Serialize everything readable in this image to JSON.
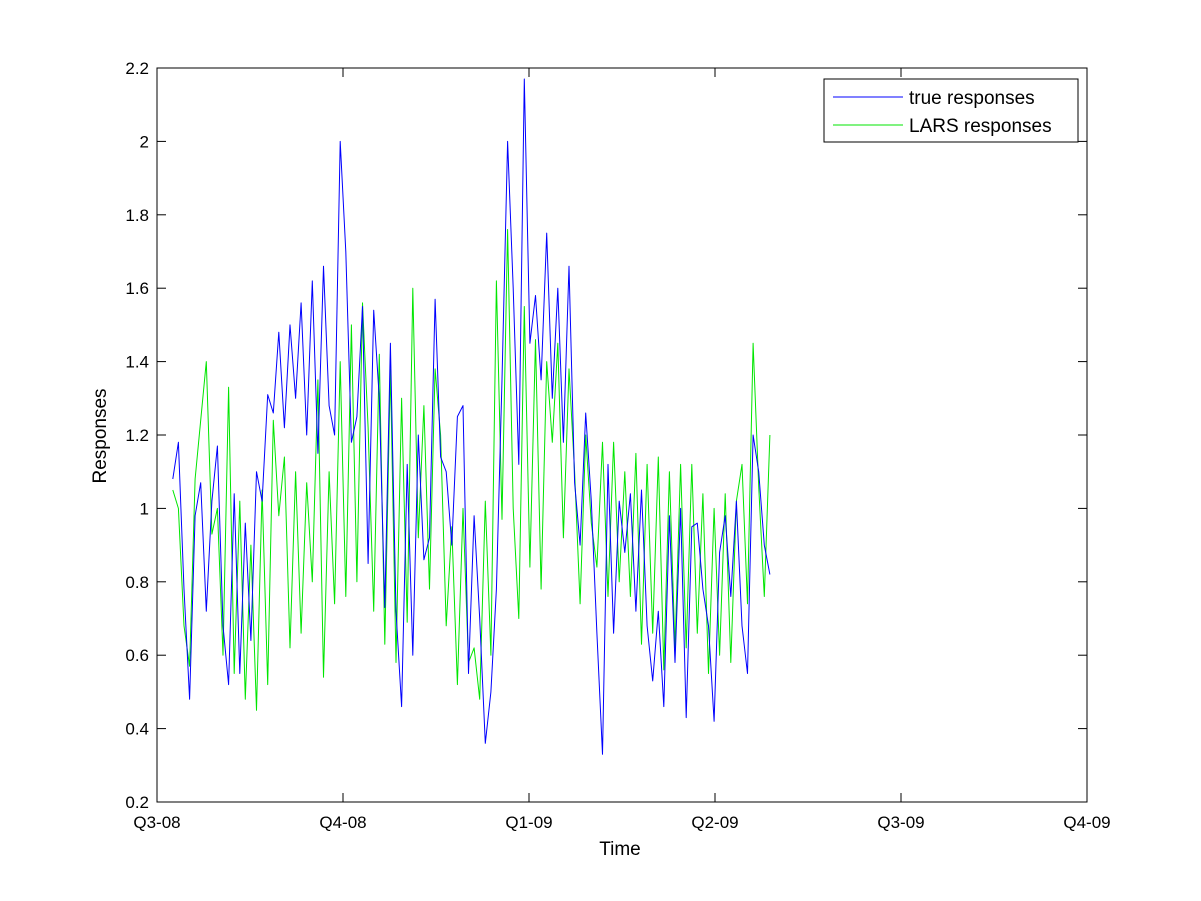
{
  "chart_data": {
    "type": "line",
    "title": "",
    "xlabel": "Time",
    "ylabel": "Responses",
    "xlim": [
      0,
      5
    ],
    "ylim": [
      0.2,
      2.2
    ],
    "x_ticks": [
      {
        "value": 0,
        "label": "Q3-08"
      },
      {
        "value": 1,
        "label": "Q4-08"
      },
      {
        "value": 2,
        "label": "Q1-09"
      },
      {
        "value": 3,
        "label": "Q2-09"
      },
      {
        "value": 4,
        "label": "Q3-09"
      },
      {
        "value": 5,
        "label": "Q4-09"
      }
    ],
    "y_ticks": [
      0.2,
      0.4,
      0.6,
      0.8,
      1,
      1.2,
      1.4,
      1.6,
      1.8,
      2,
      2.2
    ],
    "grid": false,
    "legend": "top-right",
    "x_start": 0.085,
    "x_step": 0.03,
    "series": [
      {
        "name": "true responses",
        "color": "#0000ff",
        "values": [
          1.08,
          1.18,
          0.78,
          0.48,
          0.98,
          1.07,
          0.72,
          1.02,
          1.17,
          0.68,
          0.52,
          1.04,
          0.55,
          0.96,
          0.64,
          1.1,
          1.02,
          1.31,
          1.26,
          1.48,
          1.22,
          1.5,
          1.3,
          1.56,
          1.2,
          1.62,
          1.15,
          1.66,
          1.28,
          1.2,
          2.0,
          1.7,
          1.18,
          1.25,
          1.55,
          0.85,
          1.54,
          1.3,
          0.73,
          1.45,
          0.72,
          0.46,
          1.12,
          0.6,
          1.2,
          0.86,
          0.92,
          1.57,
          1.14,
          1.1,
          0.9,
          1.25,
          1.28,
          0.55,
          0.98,
          0.7,
          0.36,
          0.5,
          0.78,
          1.35,
          2.0,
          1.6,
          1.12,
          2.17,
          1.45,
          1.58,
          1.35,
          1.75,
          1.3,
          1.6,
          1.18,
          1.66,
          1.07,
          0.9,
          1.26,
          1.02,
          0.66,
          0.33,
          1.12,
          0.66,
          1.02,
          0.88,
          1.04,
          0.72,
          1.05,
          0.68,
          0.53,
          0.72,
          0.46,
          0.98,
          0.58,
          1.0,
          0.43,
          0.95,
          0.96,
          0.78,
          0.68,
          0.42,
          0.88,
          0.98,
          0.76,
          1.02,
          0.68,
          0.55,
          1.2,
          1.1,
          0.9,
          0.82
        ]
      },
      {
        "name": "LARS responses",
        "color": "#00e600",
        "values": [
          1.05,
          1.0,
          0.68,
          0.57,
          1.08,
          1.24,
          1.4,
          0.93,
          1.0,
          0.6,
          1.33,
          0.55,
          1.02,
          0.48,
          0.9,
          0.45,
          1.05,
          0.52,
          1.24,
          0.98,
          1.14,
          0.62,
          1.1,
          0.66,
          1.07,
          0.8,
          1.35,
          0.54,
          1.1,
          0.74,
          1.4,
          0.76,
          1.5,
          0.8,
          1.56,
          1.22,
          0.72,
          1.42,
          0.63,
          1.38,
          0.58,
          1.3,
          0.69,
          1.6,
          0.92,
          1.28,
          0.78,
          1.38,
          1.2,
          0.68,
          0.95,
          0.52,
          1.0,
          0.58,
          0.62,
          0.48,
          1.02,
          0.6,
          1.62,
          0.97,
          1.76,
          1.0,
          0.7,
          1.55,
          0.84,
          1.46,
          0.78,
          1.4,
          1.18,
          1.45,
          0.92,
          1.38,
          1.1,
          0.74,
          1.2,
          0.96,
          0.84,
          1.18,
          0.76,
          1.18,
          0.8,
          1.1,
          0.76,
          1.15,
          0.63,
          1.12,
          0.66,
          1.14,
          0.56,
          1.1,
          0.62,
          1.12,
          0.62,
          1.12,
          0.66,
          1.04,
          0.55,
          1.0,
          0.6,
          1.04,
          0.58,
          1.02,
          1.12,
          0.74,
          1.45,
          1.06,
          0.76,
          1.2
        ]
      }
    ]
  }
}
